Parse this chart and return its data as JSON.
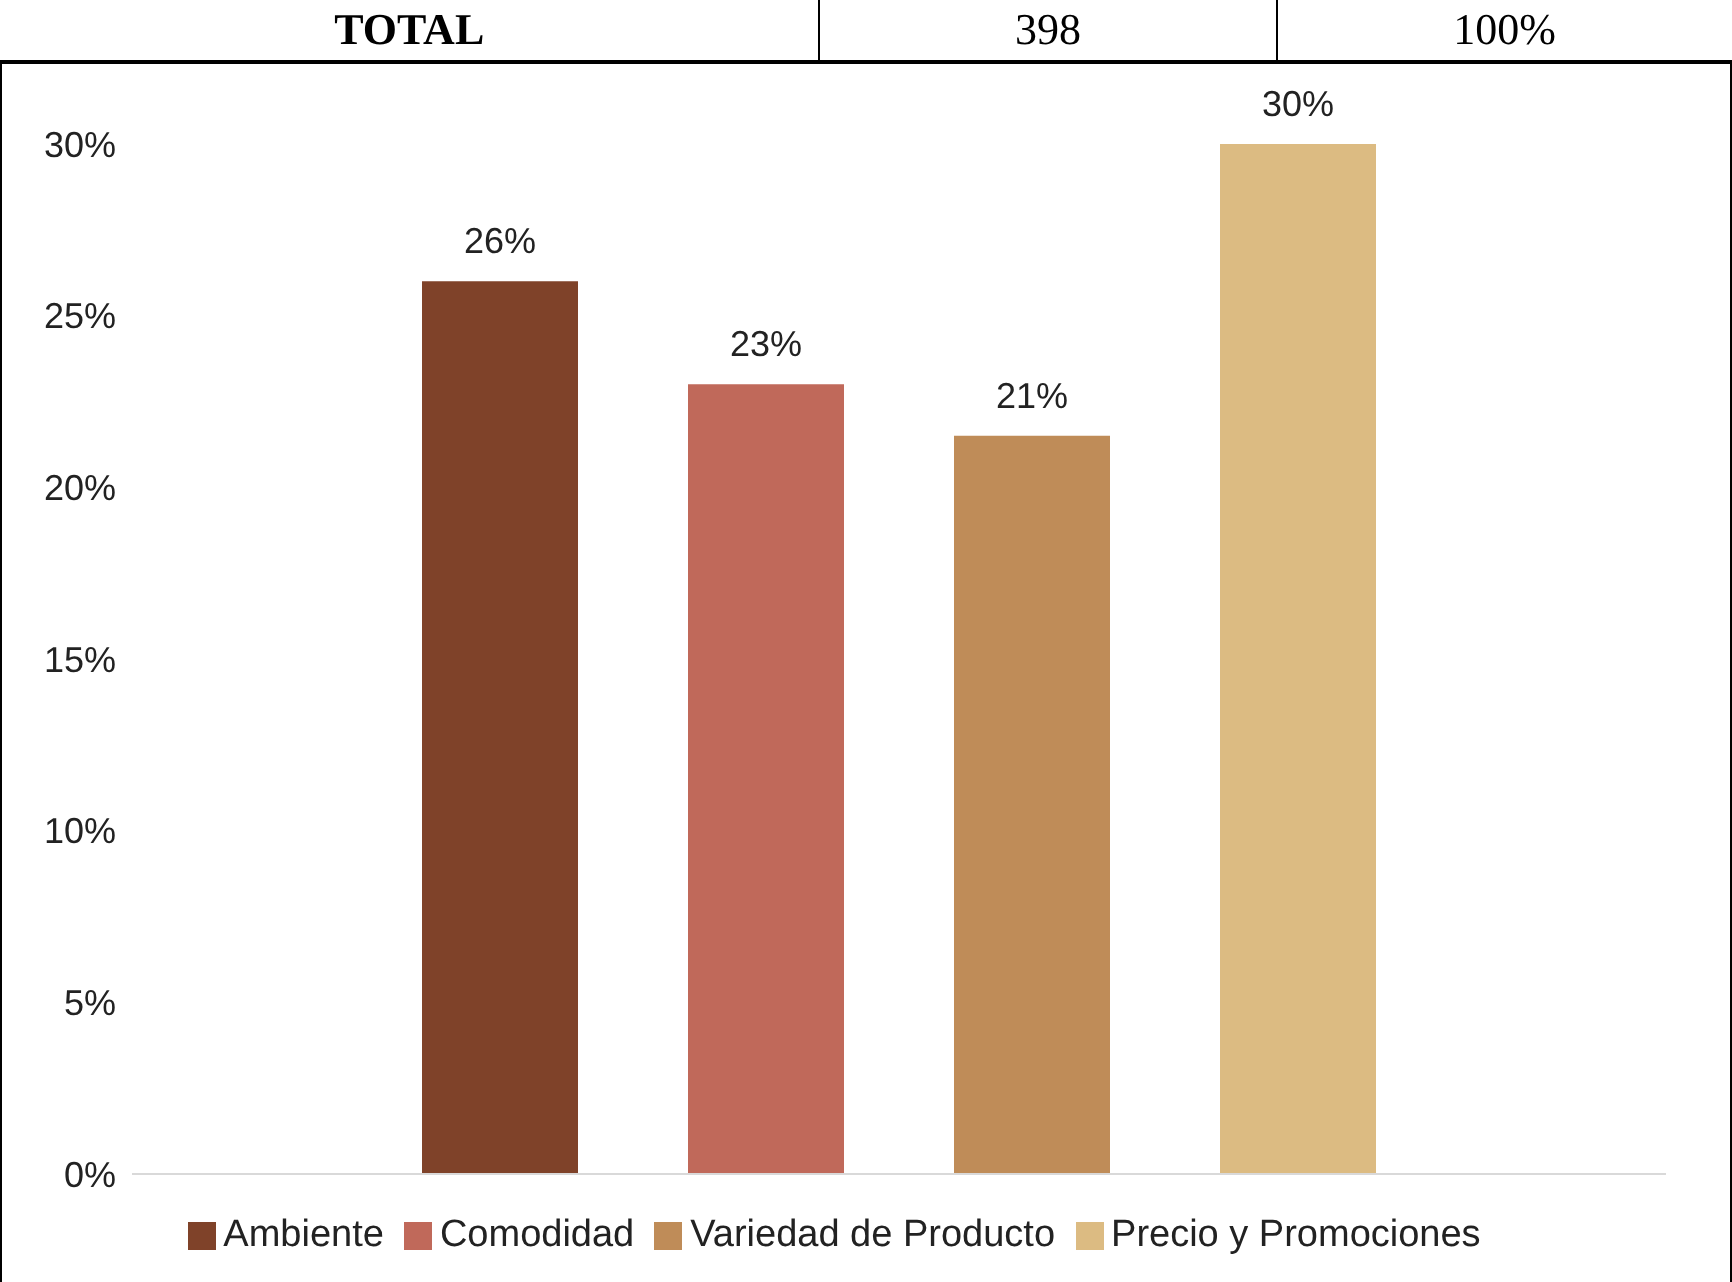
{
  "chart_data": {
    "type": "bar",
    "categories": [
      null
    ],
    "series": [
      {
        "name": "Ambiente",
        "color": "#7f4229",
        "values": [
          26
        ],
        "value_labels": [
          "26%"
        ]
      },
      {
        "name": "Comodidad",
        "color": "#c0695a",
        "values": [
          23
        ],
        "value_labels": [
          "23%"
        ]
      },
      {
        "name": "Variedad de Producto",
        "color": "#bf8c58",
        "values": [
          21.5
        ],
        "value_labels": [
          "21%"
        ]
      },
      {
        "name": "Precio y Promociones",
        "color": "#dcbb82",
        "values": [
          30
        ],
        "value_labels": [
          "30%"
        ]
      }
    ],
    "ylim": [
      0,
      30
    ],
    "yticks": [
      {
        "value": 0,
        "label": "0%"
      },
      {
        "value": 5,
        "label": "5%"
      },
      {
        "value": 10,
        "label": "10%"
      },
      {
        "value": 15,
        "label": "15%"
      },
      {
        "value": 20,
        "label": "20%"
      },
      {
        "value": 25,
        "label": "25%"
      },
      {
        "value": 30,
        "label": "30%"
      }
    ],
    "grid": false,
    "legend": "bottom",
    "tick_labels": "y",
    "annotations": [
      "TOTAL",
      "398",
      "100%"
    ]
  }
}
